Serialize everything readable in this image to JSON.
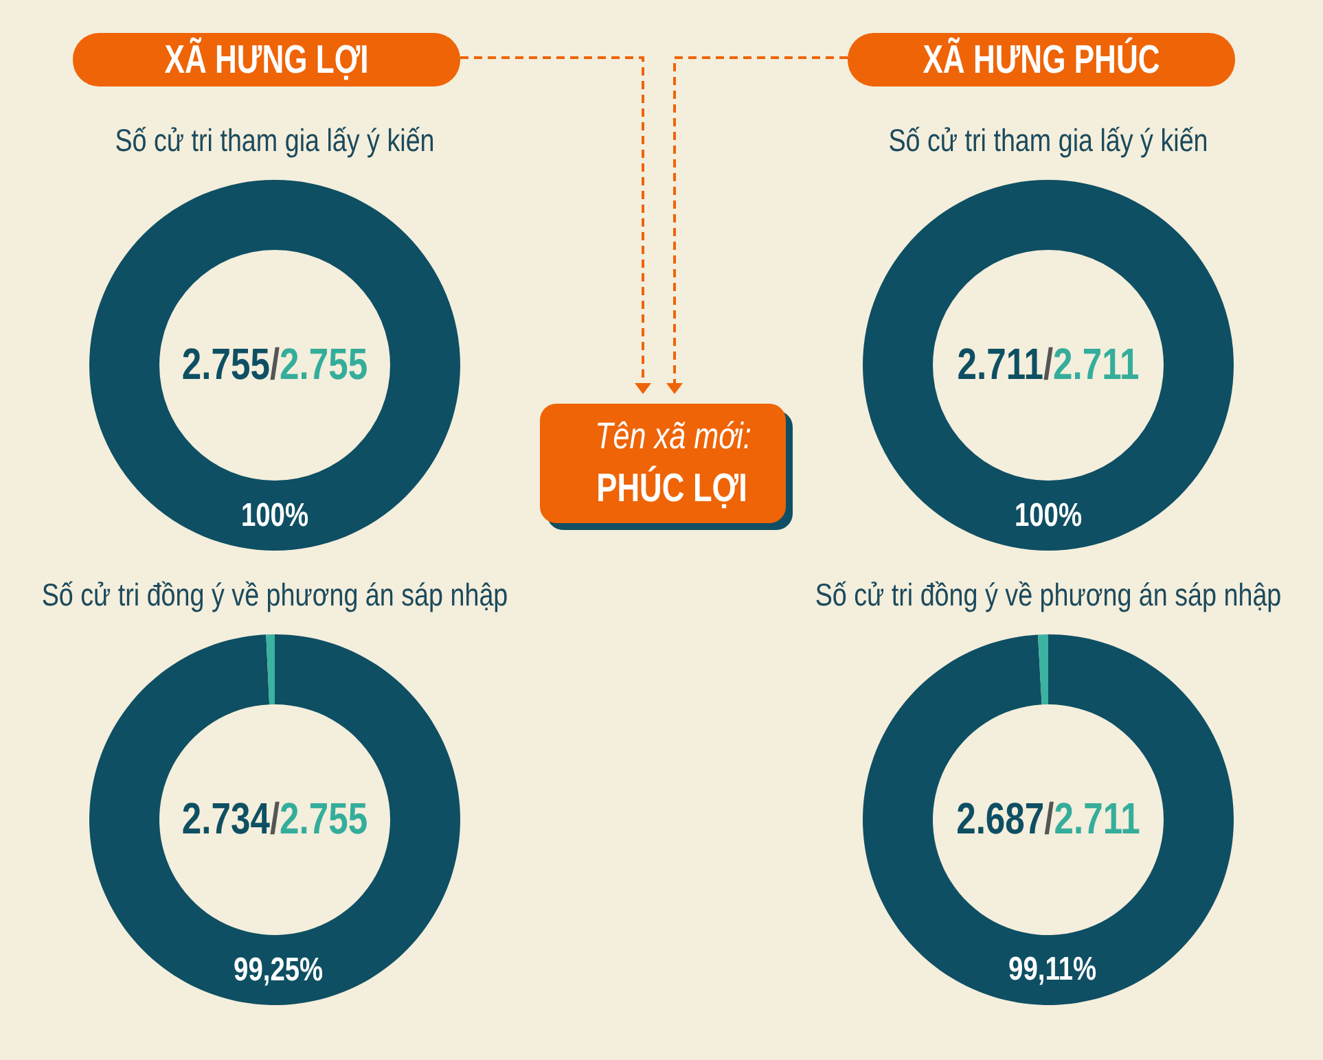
{
  "chart_data": [
    {
      "type": "other",
      "annotations": [
        "XÃ HƯNG LỢI",
        "XÃ HƯNG PHÚC",
        "Tên xã mới:",
        "PHÚC LỢI"
      ]
    },
    {
      "type": "donut",
      "title": "Số cử tri tham gia lấy ý kiến",
      "categories": [
        null
      ],
      "values": [
        100
      ],
      "colors": [
        "#0e4f63"
      ],
      "value_labels": [
        "100%"
      ],
      "annotations": [
        "2.755/2.755"
      ]
    },
    {
      "type": "donut",
      "title": "Số cử tri tham gia lấy ý kiến",
      "categories": [
        null
      ],
      "values": [
        100
      ],
      "colors": [
        "#0e4f63"
      ],
      "value_labels": [
        "100%"
      ],
      "annotations": [
        "2.711/2.711"
      ]
    },
    {
      "type": "donut",
      "title": "Số cử tri đồng ý về phương án sáp nhập",
      "categories": [
        null,
        null
      ],
      "values": [
        99.25,
        0.75
      ],
      "colors": [
        "#0e4f63",
        "#3bb3a0"
      ],
      "value_labels": [
        "99,25%",
        null
      ],
      "annotations": [
        "2.734/2.755"
      ]
    },
    {
      "type": "donut",
      "title": "Số cử tri đồng ý về phương án sáp nhập",
      "categories": [
        null,
        null
      ],
      "values": [
        99.11,
        0.89
      ],
      "colors": [
        "#0e4f63",
        "#3bb3a0"
      ],
      "value_labels": [
        "99,11%",
        null
      ],
      "annotations": [
        "2.687/2.711"
      ]
    }
  ]
}
